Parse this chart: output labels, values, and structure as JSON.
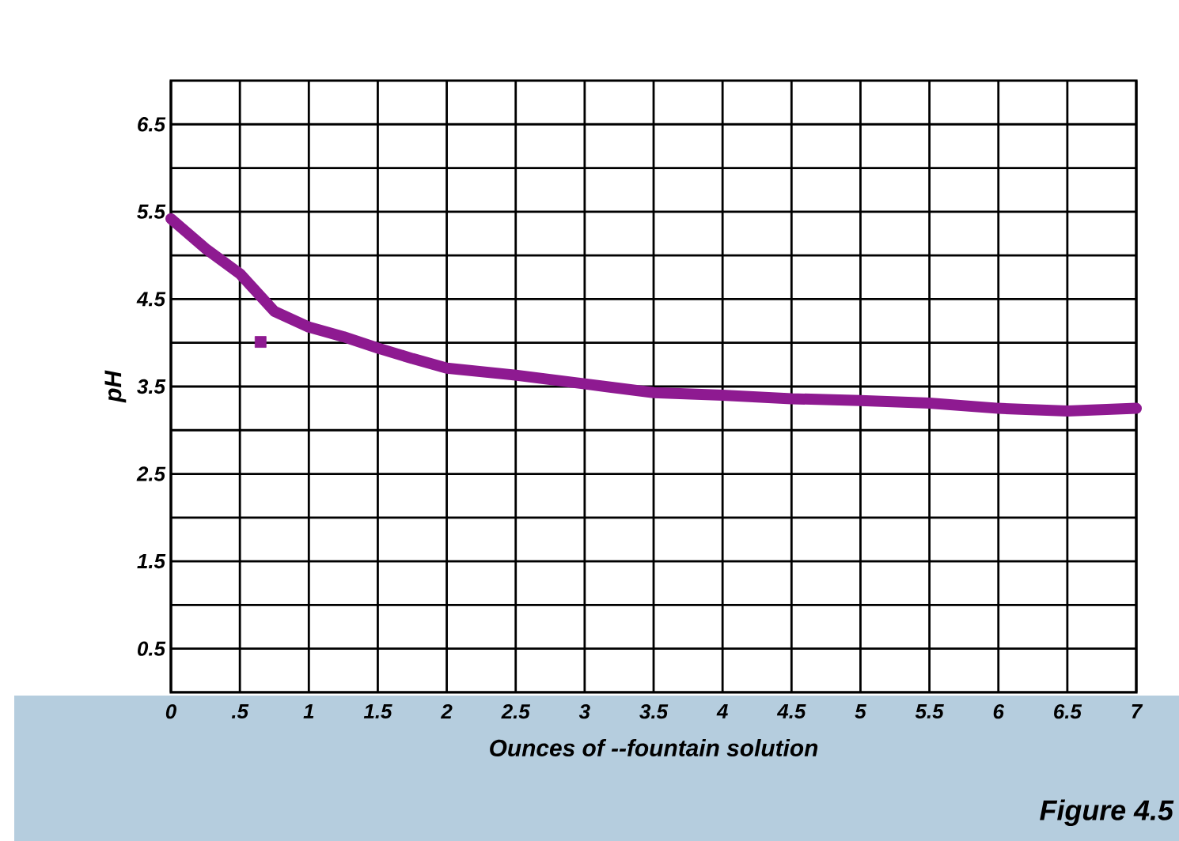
{
  "chart_data": {
    "type": "line",
    "xlabel": "Ounces of --fountain solution",
    "ylabel": "pH",
    "annotations": [
      "Figure 4.5"
    ],
    "xlim": [
      0,
      7
    ],
    "ylim": [
      0,
      7
    ],
    "xticks": [
      0,
      {
        "value": 0.5,
        "label": ".5"
      },
      1,
      1.5,
      2,
      2.5,
      3,
      3.5,
      4,
      4.5,
      5,
      5.5,
      6,
      6.5,
      7
    ],
    "yticks": [
      0.5,
      {
        "value": 1,
        "label": null
      },
      1.5,
      {
        "value": 2,
        "label": null
      },
      2.5,
      {
        "value": 3,
        "label": null
      },
      3.5,
      {
        "value": 4,
        "label": null
      },
      4.5,
      {
        "value": 5,
        "label": null
      },
      5.5,
      {
        "value": 6,
        "label": null
      },
      6.5
    ],
    "grid": true,
    "series": [
      {
        "color": "#8e1a91",
        "marker": "none",
        "x": [
          0,
          0.25,
          0.5,
          0.75,
          1,
          1.25,
          1.5,
          1.75,
          2,
          2.5,
          3,
          3.5,
          4,
          4.5,
          5,
          5.5,
          6,
          6.5,
          7
        ],
        "values": [
          5.42,
          5.08,
          4.79,
          4.36,
          4.18,
          4.07,
          3.94,
          3.82,
          3.71,
          3.63,
          3.53,
          3.43,
          3.4,
          3.36,
          3.34,
          3.31,
          3.25,
          3.22,
          3.25
        ]
      },
      {
        "type": "scatter",
        "color": "#8e1a91",
        "marker": "square",
        "x": [
          0.65
        ],
        "values": [
          4.01
        ]
      }
    ]
  }
}
